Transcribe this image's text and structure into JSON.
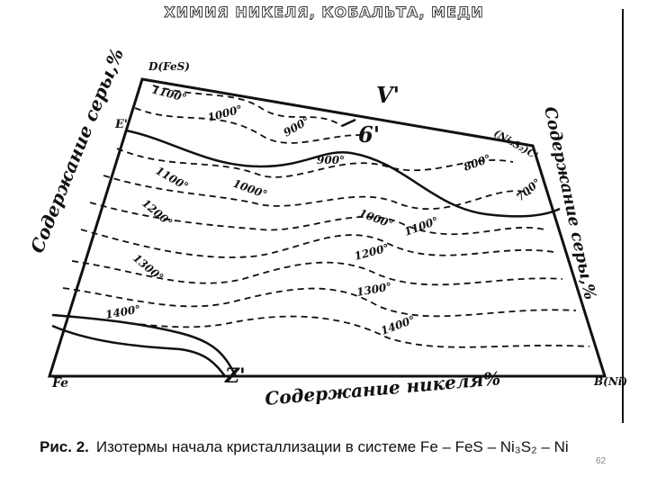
{
  "header": {
    "title": "ХИМИЯ НИКЕЛЯ, КОБАЛЬТА, МЕДИ"
  },
  "diagram": {
    "labels": [
      "D(FeS)",
      "1100°",
      "1000°",
      "V'",
      "900°",
      "6'",
      "900°",
      "E'",
      "(Ni₃S₂)C'",
      "800°",
      "700°",
      "1100°",
      "1000°",
      "1200°",
      "1000°",
      "1100°",
      "1300°",
      "1200°",
      "1300°",
      "1400°",
      "1400°",
      "Fe",
      "Z'",
      "B(Ni)",
      "Содержание серы,%",
      "Содержание никеля%",
      "Содержание серы,%"
    ]
  },
  "caption": {
    "label": "Рис. 2.",
    "text": "Изотермы начала кристаллизации в системе Fe – FeS – Ni₃S₂ – Ni"
  },
  "page_number": "62"
}
